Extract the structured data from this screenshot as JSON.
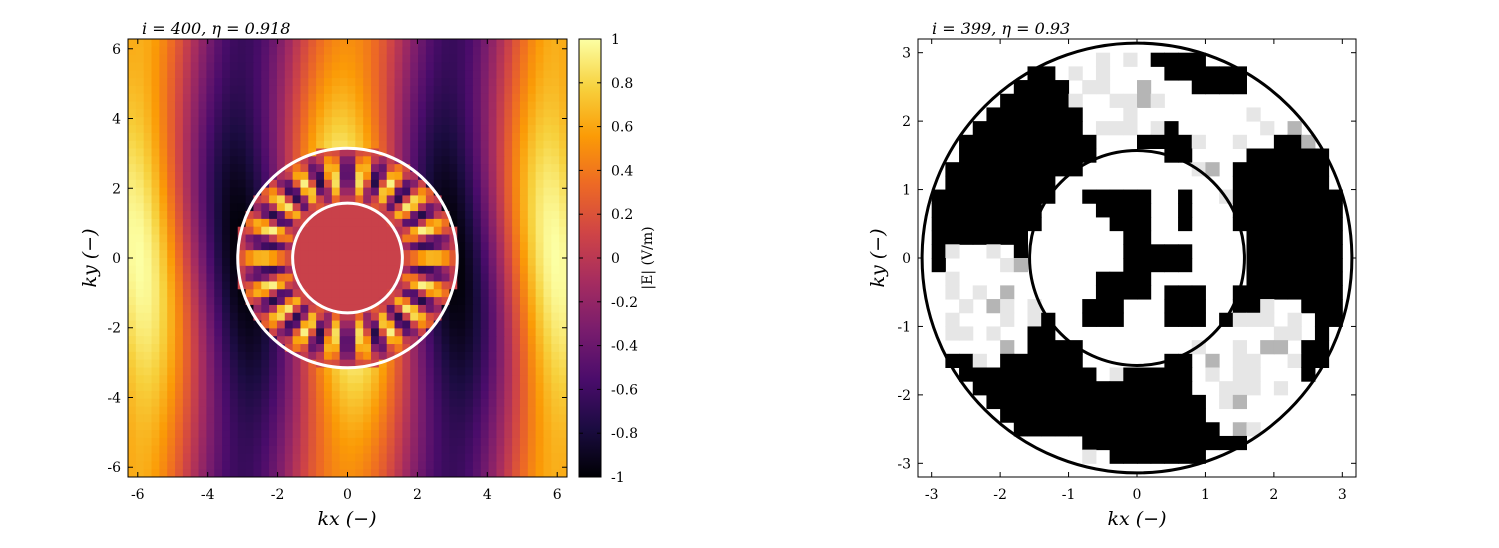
{
  "chart_data": [
    {
      "type": "heatmap",
      "title": "i = 400, η = 0.918",
      "xlabel": "kx (−)",
      "ylabel": "ky (−)",
      "xlim": [
        -6.28,
        6.28
      ],
      "ylim": [
        -6.28,
        6.28
      ],
      "xticks": [
        "-6",
        "-4",
        "-2",
        "0",
        "2",
        "4",
        "6"
      ],
      "yticks": [
        "-6",
        "-4",
        "-2",
        "0",
        "2",
        "4",
        "6"
      ],
      "colormap": "inferno",
      "colorbar": {
        "label": "|E| (V/m)",
        "ticks": [
          "-1",
          "-0.8",
          "-0.6",
          "-0.4",
          "-0.2",
          "0",
          "0.2",
          "0.4",
          "0.6",
          "0.8",
          "1"
        ],
        "range": [
          -1,
          1
        ]
      },
      "overlay_circles": [
        {
          "center": [
            0,
            0
          ],
          "radius": 3.14,
          "color": "#ffffff"
        },
        {
          "center": [
            0,
            0
          ],
          "radius": 1.57,
          "color": "#ffffff"
        }
      ],
      "grid": false
    },
    {
      "type": "heatmap",
      "title": "i = 399, η = 0.93",
      "xlabel": "kx (−)",
      "ylabel": "ky (−)",
      "xlim": [
        -3.2,
        3.2
      ],
      "ylim": [
        -3.2,
        3.2
      ],
      "xticks": [
        "-3",
        "-2",
        "-1",
        "0",
        "1",
        "2",
        "3"
      ],
      "yticks": [
        "-3",
        "-2",
        "-1",
        "0",
        "1",
        "2",
        "3"
      ],
      "colormap": "gray (binary material density)",
      "overlay_circles": [
        {
          "center": [
            0,
            0
          ],
          "radius": 3.14,
          "color": "#000000"
        },
        {
          "center": [
            0,
            0
          ],
          "radius": 1.57,
          "color": "#000000"
        }
      ],
      "grid": false
    }
  ],
  "colors": {
    "inferno": [
      "#000004",
      "#1b0c41",
      "#4a0c6b",
      "#781c6d",
      "#a52c60",
      "#cf4446",
      "#ed6925",
      "#fb9b06",
      "#f7d13d",
      "#fcffa4"
    ]
  }
}
